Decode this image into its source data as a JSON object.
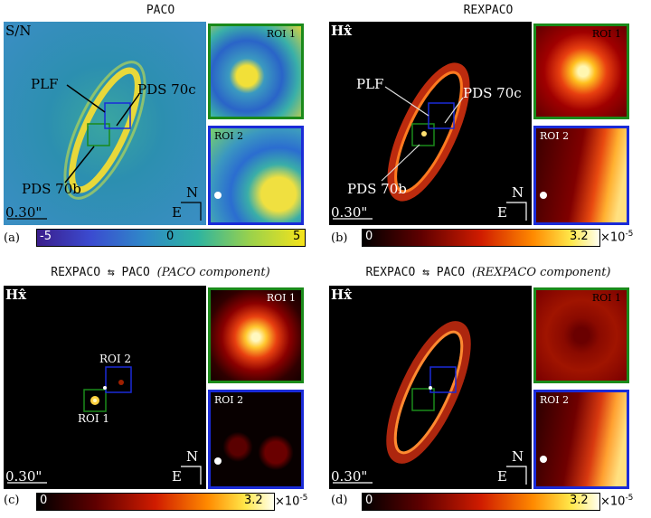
{
  "panels": {
    "a": {
      "title": "PACO",
      "quantity": "S/N",
      "letter": "(a)",
      "scale": "0.30\"",
      "labels": {
        "plf": "PLF",
        "pds70c": "PDS 70c",
        "pds70b": "PDS 70b"
      },
      "roi1": "ROI 1",
      "roi2": "ROI 2",
      "compass_n": "N",
      "compass_e": "E",
      "cbar": {
        "min": "-5",
        "mid": "0",
        "max": "5",
        "colormap": "viridis-like"
      }
    },
    "b": {
      "title": "REXPACO",
      "quantity": "Hx̂",
      "letter": "(b)",
      "scale": "0.30\"",
      "labels": {
        "plf": "PLF",
        "pds70c": "PDS 70c",
        "pds70b": "PDS 70b"
      },
      "roi1": "ROI 1",
      "roi2": "ROI 2",
      "compass_n": "N",
      "compass_e": "E",
      "cbar": {
        "min": "0",
        "max": "3.2",
        "exp_base": "×10",
        "exp": "-5",
        "colormap": "hot"
      }
    },
    "c": {
      "title_mono": "REXPACO ⇆ PACO",
      "title_italic": "(PACO component)",
      "quantity": "Hx̂",
      "letter": "(c)",
      "scale": "0.30\"",
      "labels": {
        "roi1": "ROI 1",
        "roi2": "ROI 2"
      },
      "roi1": "ROI 1",
      "roi2": "ROI 2",
      "compass_n": "N",
      "compass_e": "E",
      "cbar": {
        "min": "0",
        "max": "3.2",
        "exp_base": "×10",
        "exp": "-5",
        "colormap": "hot"
      }
    },
    "d": {
      "title_mono": "REXPACO ⇆ PACO",
      "title_italic": "(REXPACO component)",
      "quantity": "Hx̂",
      "letter": "(d)",
      "scale": "0.30\"",
      "roi1": "ROI 1",
      "roi2": "ROI 2",
      "compass_n": "N",
      "compass_e": "E",
      "cbar": {
        "min": "0",
        "max": "3.2",
        "exp_base": "×10",
        "exp": "-5",
        "colormap": "hot"
      }
    }
  },
  "colors": {
    "roi1_border": "#1a8a1a",
    "roi2_border": "#1a2bd8"
  }
}
